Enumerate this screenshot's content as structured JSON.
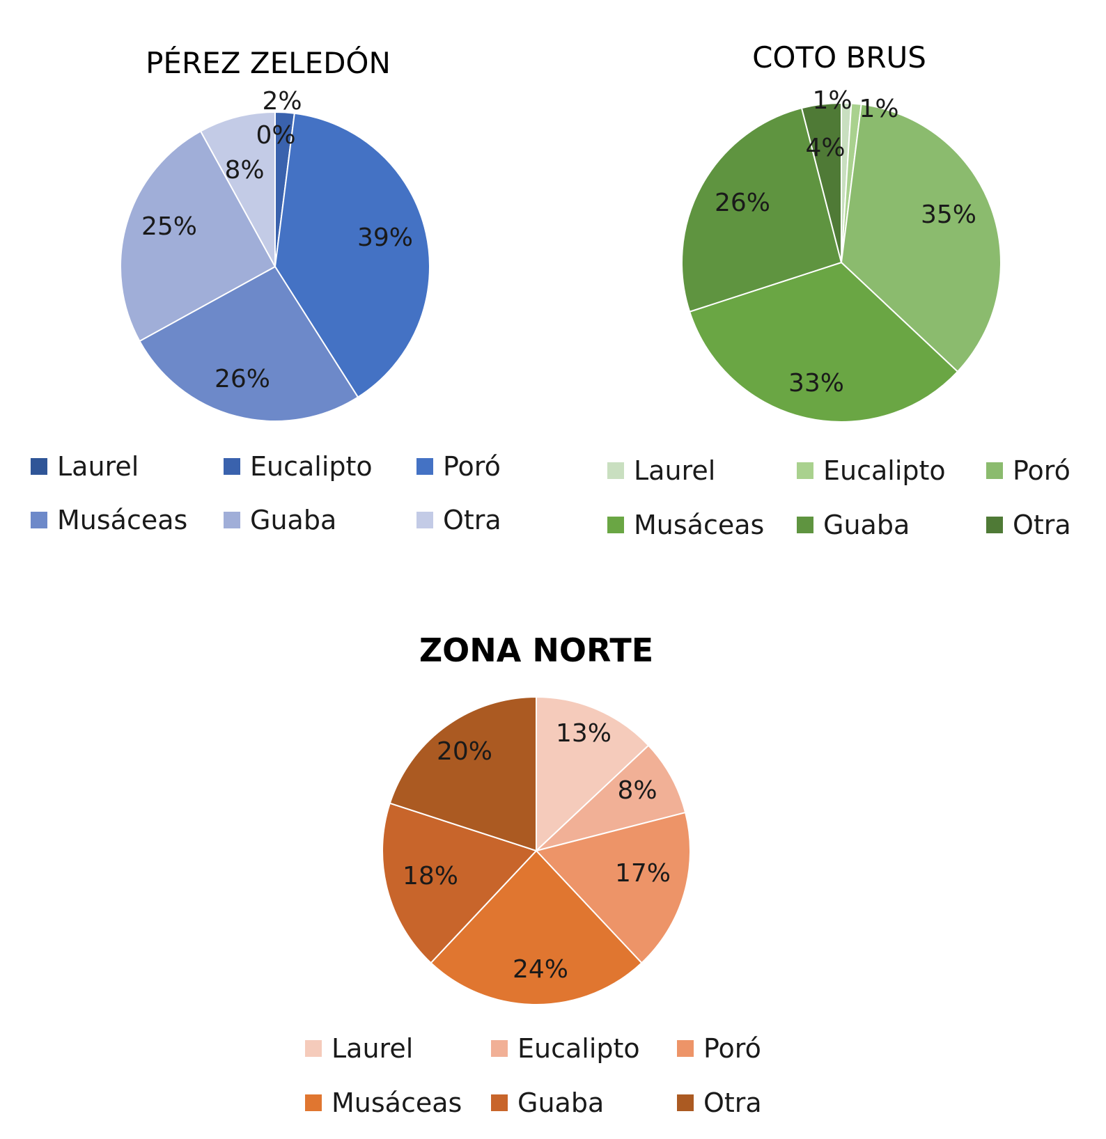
{
  "chart_data": [
    {
      "type": "pie",
      "title": "PÉREZ ZELEDÓN",
      "categories": [
        "Laurel",
        "Eucalipto",
        "Poró",
        "Musáceas",
        "Guaba",
        "Otra"
      ],
      "values": [
        0,
        2,
        39,
        26,
        25,
        8
      ],
      "labels": [
        "0%",
        "2%",
        "39%",
        "26%",
        "25%",
        "8%"
      ],
      "colors": [
        "#2f5597",
        "#3a62ad",
        "#4472c4",
        "#6d89c9",
        "#a0aed8",
        "#c3cbe6"
      ],
      "legend": "bottom"
    },
    {
      "type": "pie",
      "title": "COTO BRUS",
      "categories": [
        "Laurel",
        "Eucalipto",
        "Poró",
        "Musáceas",
        "Guaba",
        "Otra"
      ],
      "values": [
        1,
        1,
        35,
        33,
        26,
        4
      ],
      "labels": [
        "1%",
        "1%",
        "35%",
        "33%",
        "26%",
        "4%"
      ],
      "colors": [
        "#c9dfc0",
        "#a9d18e",
        "#8bbb6e",
        "#6aa644",
        "#5f9440",
        "#4f7a36"
      ],
      "legend": "bottom"
    },
    {
      "type": "pie",
      "title": "ZONA NORTE",
      "categories": [
        "Laurel",
        "Eucalipto",
        "Poró",
        "Musáceas",
        "Guaba",
        "Otra"
      ],
      "values": [
        13,
        8,
        17,
        24,
        18,
        20
      ],
      "labels": [
        "13%",
        "8%",
        "17%",
        "24%",
        "18%",
        "20%"
      ],
      "colors": [
        "#f5cbbb",
        "#f1b096",
        "#ed9468",
        "#e07630",
        "#c8652b",
        "#ab5a22"
      ],
      "legend": "bottom"
    }
  ]
}
